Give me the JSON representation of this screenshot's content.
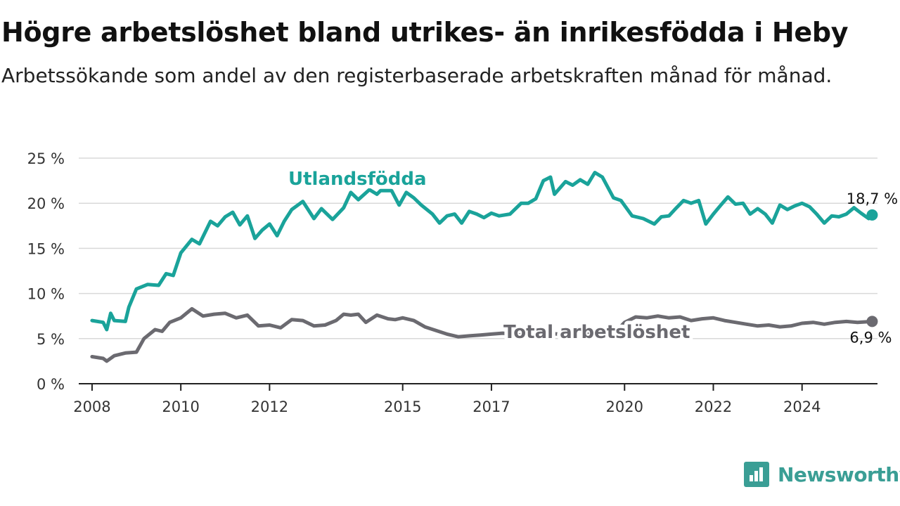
{
  "header": {
    "title": "Högre arbetslöshet bland utrikes- än inrikesfödda i Heby",
    "subtitle": "Arbetssökande som andel av den registerbaserade arbetskraften månad för månad."
  },
  "brand": {
    "name": "Newsworthy",
    "icon": "bar-chart-badge-icon",
    "color": "#3a9e95"
  },
  "chart_data": {
    "type": "line",
    "title": "Högre arbetslöshet bland utrikes- än inrikesfödda i Heby",
    "subtitle": "Arbetssökande som andel av den registerbaserade arbetskraften månad för månad.",
    "xlabel": "",
    "ylabel": "",
    "ylim": [
      0,
      25
    ],
    "xlim": [
      2007.7,
      2025.7
    ],
    "y_ticks": [
      0,
      5,
      10,
      15,
      20,
      25
    ],
    "y_tick_labels": [
      "0 %",
      "5 %",
      "10 %",
      "15 %",
      "20 %",
      "25 %"
    ],
    "x_ticks": [
      2008,
      2010,
      2012,
      2015,
      2017,
      2020,
      2022,
      2024
    ],
    "x_tick_labels": [
      "2008",
      "2010",
      "2012",
      "2015",
      "2017",
      "2020",
      "2022",
      "2024"
    ],
    "grid": "horizontal",
    "series": [
      {
        "name": "Utlandsfödda",
        "color": "#1aa39a",
        "end_label": "18,7 %",
        "points": [
          [
            2008.0,
            7.0
          ],
          [
            2008.25,
            6.8
          ],
          [
            2008.33,
            6.0
          ],
          [
            2008.42,
            7.8
          ],
          [
            2008.5,
            7.0
          ],
          [
            2008.75,
            6.9
          ],
          [
            2008.83,
            8.5
          ],
          [
            2009.0,
            10.5
          ],
          [
            2009.25,
            11.0
          ],
          [
            2009.5,
            10.9
          ],
          [
            2009.67,
            12.2
          ],
          [
            2009.83,
            12.0
          ],
          [
            2010.0,
            14.5
          ],
          [
            2010.25,
            16.0
          ],
          [
            2010.42,
            15.5
          ],
          [
            2010.67,
            18.0
          ],
          [
            2010.83,
            17.5
          ],
          [
            2011.0,
            18.5
          ],
          [
            2011.17,
            19.0
          ],
          [
            2011.33,
            17.6
          ],
          [
            2011.5,
            18.6
          ],
          [
            2011.67,
            16.1
          ],
          [
            2011.83,
            17.0
          ],
          [
            2012.0,
            17.7
          ],
          [
            2012.17,
            16.4
          ],
          [
            2012.33,
            18.0
          ],
          [
            2012.5,
            19.3
          ],
          [
            2012.75,
            20.2
          ],
          [
            2013.0,
            18.3
          ],
          [
            2013.17,
            19.4
          ],
          [
            2013.42,
            18.2
          ],
          [
            2013.67,
            19.5
          ],
          [
            2013.83,
            21.2
          ],
          [
            2014.0,
            20.4
          ],
          [
            2014.25,
            21.5
          ],
          [
            2014.42,
            21.0
          ],
          [
            2014.5,
            21.4
          ],
          [
            2014.75,
            21.4
          ],
          [
            2014.92,
            19.8
          ],
          [
            2015.08,
            21.2
          ],
          [
            2015.25,
            20.6
          ],
          [
            2015.42,
            19.8
          ],
          [
            2015.67,
            18.8
          ],
          [
            2015.83,
            17.8
          ],
          [
            2016.0,
            18.6
          ],
          [
            2016.17,
            18.8
          ],
          [
            2016.33,
            17.8
          ],
          [
            2016.5,
            19.1
          ],
          [
            2016.67,
            18.8
          ],
          [
            2016.83,
            18.4
          ],
          [
            2017.0,
            18.9
          ],
          [
            2017.17,
            18.6
          ],
          [
            2017.42,
            18.8
          ],
          [
            2017.67,
            20.0
          ],
          [
            2017.83,
            20.0
          ],
          [
            2018.0,
            20.5
          ],
          [
            2018.17,
            22.5
          ],
          [
            2018.33,
            22.9
          ],
          [
            2018.42,
            21.0
          ],
          [
            2018.67,
            22.4
          ],
          [
            2018.83,
            22.0
          ],
          [
            2019.0,
            22.6
          ],
          [
            2019.17,
            22.1
          ],
          [
            2019.33,
            23.4
          ],
          [
            2019.5,
            22.9
          ],
          [
            2019.75,
            20.6
          ],
          [
            2019.92,
            20.3
          ],
          [
            2020.17,
            18.6
          ],
          [
            2020.42,
            18.3
          ],
          [
            2020.67,
            17.7
          ],
          [
            2020.83,
            18.5
          ],
          [
            2021.0,
            18.6
          ],
          [
            2021.17,
            19.5
          ],
          [
            2021.33,
            20.3
          ],
          [
            2021.5,
            20.0
          ],
          [
            2021.67,
            20.3
          ],
          [
            2021.83,
            17.7
          ],
          [
            2022.0,
            18.8
          ],
          [
            2022.17,
            19.8
          ],
          [
            2022.33,
            20.7
          ],
          [
            2022.5,
            19.9
          ],
          [
            2022.67,
            20.0
          ],
          [
            2022.83,
            18.8
          ],
          [
            2023.0,
            19.4
          ],
          [
            2023.17,
            18.8
          ],
          [
            2023.33,
            17.8
          ],
          [
            2023.5,
            19.8
          ],
          [
            2023.67,
            19.3
          ],
          [
            2023.83,
            19.7
          ],
          [
            2024.0,
            20.0
          ],
          [
            2024.17,
            19.6
          ],
          [
            2024.33,
            18.8
          ],
          [
            2024.5,
            17.8
          ],
          [
            2024.67,
            18.6
          ],
          [
            2024.83,
            18.5
          ],
          [
            2025.0,
            18.8
          ],
          [
            2025.17,
            19.5
          ],
          [
            2025.33,
            18.9
          ],
          [
            2025.5,
            18.3
          ],
          [
            2025.58,
            18.7
          ]
        ]
      },
      {
        "name": "Total arbetslöshet",
        "color": "#6b6a70",
        "end_label": "6,9 %",
        "points": [
          [
            2008.0,
            3.0
          ],
          [
            2008.25,
            2.8
          ],
          [
            2008.33,
            2.5
          ],
          [
            2008.5,
            3.1
          ],
          [
            2008.75,
            3.4
          ],
          [
            2009.0,
            3.5
          ],
          [
            2009.17,
            5.0
          ],
          [
            2009.42,
            6.0
          ],
          [
            2009.58,
            5.8
          ],
          [
            2009.75,
            6.8
          ],
          [
            2010.0,
            7.3
          ],
          [
            2010.25,
            8.3
          ],
          [
            2010.5,
            7.5
          ],
          [
            2010.75,
            7.7
          ],
          [
            2011.0,
            7.8
          ],
          [
            2011.25,
            7.3
          ],
          [
            2011.5,
            7.6
          ],
          [
            2011.75,
            6.4
          ],
          [
            2012.0,
            6.5
          ],
          [
            2012.25,
            6.2
          ],
          [
            2012.5,
            7.1
          ],
          [
            2012.75,
            7.0
          ],
          [
            2013.0,
            6.4
          ],
          [
            2013.25,
            6.5
          ],
          [
            2013.5,
            7.0
          ],
          [
            2013.67,
            7.7
          ],
          [
            2013.83,
            7.6
          ],
          [
            2014.0,
            7.7
          ],
          [
            2014.17,
            6.8
          ],
          [
            2014.42,
            7.6
          ],
          [
            2014.67,
            7.2
          ],
          [
            2014.83,
            7.1
          ],
          [
            2015.0,
            7.3
          ],
          [
            2015.25,
            7.0
          ],
          [
            2015.5,
            6.3
          ],
          [
            2015.75,
            5.9
          ],
          [
            2016.0,
            5.5
          ],
          [
            2016.25,
            5.2
          ],
          [
            2016.5,
            5.3
          ],
          [
            2016.75,
            5.4
          ],
          [
            2017.0,
            5.5
          ],
          [
            2017.25,
            5.6
          ],
          [
            2017.5,
            5.5
          ],
          [
            2017.75,
            5.3
          ],
          [
            2018.0,
            5.4
          ],
          [
            2018.25,
            5.6
          ],
          [
            2018.5,
            5.5
          ],
          [
            2019.0,
            5.6
          ],
          [
            2019.5,
            5.4
          ],
          [
            2019.75,
            5.5
          ],
          [
            2020.0,
            6.8
          ],
          [
            2020.25,
            7.4
          ],
          [
            2020.5,
            7.3
          ],
          [
            2020.75,
            7.5
          ],
          [
            2021.0,
            7.3
          ],
          [
            2021.25,
            7.4
          ],
          [
            2021.5,
            7.0
          ],
          [
            2021.75,
            7.2
          ],
          [
            2022.0,
            7.3
          ],
          [
            2022.25,
            7.0
          ],
          [
            2022.5,
            6.8
          ],
          [
            2022.75,
            6.6
          ],
          [
            2023.0,
            6.4
          ],
          [
            2023.25,
            6.5
          ],
          [
            2023.5,
            6.3
          ],
          [
            2023.75,
            6.4
          ],
          [
            2024.0,
            6.7
          ],
          [
            2024.25,
            6.8
          ],
          [
            2024.5,
            6.6
          ],
          [
            2024.75,
            6.8
          ],
          [
            2025.0,
            6.9
          ],
          [
            2025.25,
            6.8
          ],
          [
            2025.58,
            6.9
          ]
        ]
      }
    ]
  }
}
